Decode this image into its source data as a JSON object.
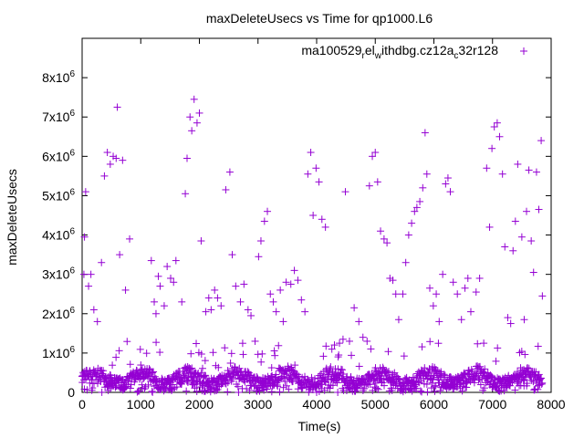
{
  "chart_data": {
    "type": "scatter",
    "title": "maxDeleteUsecs vs Time for qp1000.L6",
    "xlabel": "Time(s)",
    "ylabel": "maxDeleteUsecs",
    "xlim": [
      0,
      8000
    ],
    "ylim": [
      0,
      9000000
    ],
    "x_ticks": [
      0,
      1000,
      2000,
      3000,
      4000,
      5000,
      6000,
      7000,
      8000
    ],
    "y_ticks": [
      {
        "value": 0,
        "base": "0",
        "exp": ""
      },
      {
        "value": 1000000,
        "base": "1x10",
        "exp": "6"
      },
      {
        "value": 2000000,
        "base": "2x10",
        "exp": "6"
      },
      {
        "value": 3000000,
        "base": "3x10",
        "exp": "6"
      },
      {
        "value": 4000000,
        "base": "4x10",
        "exp": "6"
      },
      {
        "value": 5000000,
        "base": "5x10",
        "exp": "6"
      },
      {
        "value": 6000000,
        "base": "6x10",
        "exp": "6"
      },
      {
        "value": 7000000,
        "base": "7x10",
        "exp": "6"
      },
      {
        "value": 8000000,
        "base": "8x10",
        "exp": "6"
      }
    ],
    "grid": false,
    "legend_position": "top-right",
    "marker": "plus",
    "series": [
      {
        "legend_parts": [
          {
            "text": "ma100529",
            "shift": "none"
          },
          {
            "text": "r",
            "shift": "sub"
          },
          {
            "text": "el",
            "shift": "none"
          },
          {
            "text": "w",
            "shift": "sub"
          },
          {
            "text": "ithdbg.cz12a",
            "shift": "none"
          },
          {
            "text": "c",
            "shift": "sub"
          },
          {
            "text": "32r128",
            "shift": "none"
          }
        ],
        "color": "#9400d3",
        "outliers": [
          [
            30,
            3000000
          ],
          [
            40,
            3950000
          ],
          [
            60,
            5100000
          ],
          [
            110,
            2700000
          ],
          [
            150,
            3000000
          ],
          [
            200,
            2100000
          ],
          [
            260,
            1800000
          ],
          [
            330,
            3300000
          ],
          [
            380,
            5500000
          ],
          [
            430,
            6100000
          ],
          [
            480,
            5800000
          ],
          [
            530,
            6000000
          ],
          [
            580,
            5950000
          ],
          [
            600,
            7250000
          ],
          [
            640,
            3500000
          ],
          [
            690,
            5900000
          ],
          [
            740,
            2600000
          ],
          [
            810,
            3900000
          ],
          [
            1180,
            3350000
          ],
          [
            1230,
            2300000
          ],
          [
            1260,
            2000000
          ],
          [
            1300,
            2950000
          ],
          [
            1330,
            2700000
          ],
          [
            1400,
            2200000
          ],
          [
            1450,
            3200000
          ],
          [
            1510,
            2900000
          ],
          [
            1560,
            2800000
          ],
          [
            1600,
            3350000
          ],
          [
            1700,
            2300000
          ],
          [
            1760,
            5050000
          ],
          [
            1790,
            5950000
          ],
          [
            1840,
            7000000
          ],
          [
            1870,
            6650000
          ],
          [
            1910,
            7450000
          ],
          [
            1960,
            6850000
          ],
          [
            2000,
            7100000
          ],
          [
            2030,
            3850000
          ],
          [
            2110,
            2050000
          ],
          [
            2160,
            2400000
          ],
          [
            2200,
            2100000
          ],
          [
            2260,
            2600000
          ],
          [
            2310,
            2400000
          ],
          [
            2370,
            2200000
          ],
          [
            2450,
            5150000
          ],
          [
            2520,
            5600000
          ],
          [
            2560,
            3500000
          ],
          [
            2620,
            2700000
          ],
          [
            2700,
            2300000
          ],
          [
            2760,
            2750000
          ],
          [
            2830,
            2100000
          ],
          [
            2880,
            1950000
          ],
          [
            2950,
            1300000
          ],
          [
            3010,
            3450000
          ],
          [
            3050,
            3850000
          ],
          [
            3110,
            4350000
          ],
          [
            3160,
            4600000
          ],
          [
            3210,
            2500000
          ],
          [
            3260,
            2300000
          ],
          [
            3310,
            2050000
          ],
          [
            3380,
            2600000
          ],
          [
            3430,
            1800000
          ],
          [
            3480,
            2800000
          ],
          [
            3560,
            2750000
          ],
          [
            3620,
            3100000
          ],
          [
            3680,
            2850000
          ],
          [
            3740,
            2350000
          ],
          [
            3800,
            2050000
          ],
          [
            3850,
            5550000
          ],
          [
            3900,
            6100000
          ],
          [
            3940,
            4500000
          ],
          [
            3990,
            5700000
          ],
          [
            4040,
            5350000
          ],
          [
            4090,
            4400000
          ],
          [
            4150,
            4200000
          ],
          [
            4260,
            1100000
          ],
          [
            4390,
            1250000
          ],
          [
            4450,
            1350000
          ],
          [
            4490,
            5100000
          ],
          [
            4560,
            1300000
          ],
          [
            4640,
            2150000
          ],
          [
            4720,
            1800000
          ],
          [
            4790,
            1400000
          ],
          [
            4860,
            1300000
          ],
          [
            4900,
            5250000
          ],
          [
            4950,
            6000000
          ],
          [
            5000,
            6100000
          ],
          [
            5040,
            5350000
          ],
          [
            5090,
            4100000
          ],
          [
            5150,
            3900000
          ],
          [
            5200,
            3800000
          ],
          [
            5250,
            2900000
          ],
          [
            5300,
            2850000
          ],
          [
            5350,
            2500000
          ],
          [
            5400,
            1850000
          ],
          [
            5470,
            2500000
          ],
          [
            5520,
            3300000
          ],
          [
            5570,
            4000000
          ],
          [
            5620,
            4300000
          ],
          [
            5670,
            4600000
          ],
          [
            5710,
            4700000
          ],
          [
            5760,
            4850000
          ],
          [
            5810,
            5200000
          ],
          [
            5850,
            6600000
          ],
          [
            5880,
            5550000
          ],
          [
            5930,
            2650000
          ],
          [
            5990,
            2200000
          ],
          [
            6040,
            2500000
          ],
          [
            6090,
            1800000
          ],
          [
            6150,
            3000000
          ],
          [
            6200,
            5300000
          ],
          [
            6240,
            5450000
          ],
          [
            6280,
            5100000
          ],
          [
            6330,
            2800000
          ],
          [
            6400,
            2500000
          ],
          [
            6470,
            1850000
          ],
          [
            6530,
            2650000
          ],
          [
            6580,
            2900000
          ],
          [
            6630,
            2050000
          ],
          [
            6720,
            2550000
          ],
          [
            6780,
            2900000
          ],
          [
            6850,
            1250000
          ],
          [
            6900,
            5700000
          ],
          [
            6950,
            4200000
          ],
          [
            6990,
            6200000
          ],
          [
            7030,
            6750000
          ],
          [
            7080,
            6850000
          ],
          [
            7120,
            6500000
          ],
          [
            7170,
            5550000
          ],
          [
            7210,
            3700000
          ],
          [
            7260,
            1900000
          ],
          [
            7310,
            1750000
          ],
          [
            7350,
            3600000
          ],
          [
            7390,
            4350000
          ],
          [
            7430,
            5800000
          ],
          [
            7500,
            3950000
          ],
          [
            7540,
            1850000
          ],
          [
            7580,
            4600000
          ],
          [
            7620,
            5650000
          ],
          [
            7660,
            3850000
          ],
          [
            7700,
            3050000
          ],
          [
            7750,
            5600000
          ],
          [
            7790,
            4650000
          ],
          [
            7830,
            6400000
          ],
          [
            7850,
            2450000
          ]
        ]
      }
    ]
  }
}
